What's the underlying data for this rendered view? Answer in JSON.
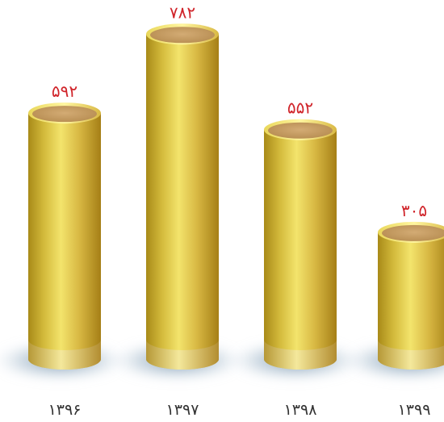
{
  "chart_data": {
    "type": "bar",
    "style": "3d-cylinder",
    "categories": [
      "۱۳۹۶",
      "۱۳۹۷",
      "۱۳۹۸",
      "۱۳۹۹"
    ],
    "values": [
      592,
      782,
      552,
      305
    ],
    "value_labels": [
      "۵۹۲",
      "۷۸۲",
      "۵۵۲",
      "۳۰۵"
    ],
    "ylim": [
      0,
      800
    ],
    "grid": false,
    "legend": "none",
    "colors": {
      "cylinder_light": "#f2e36a",
      "cylinder_mid": "#cfae2e",
      "cylinder_dark": "#9c7d12",
      "top_face": "#c79c62",
      "value_label": "#d0242a",
      "category_label": "#333333",
      "shadow": "#8aa6bd"
    }
  }
}
